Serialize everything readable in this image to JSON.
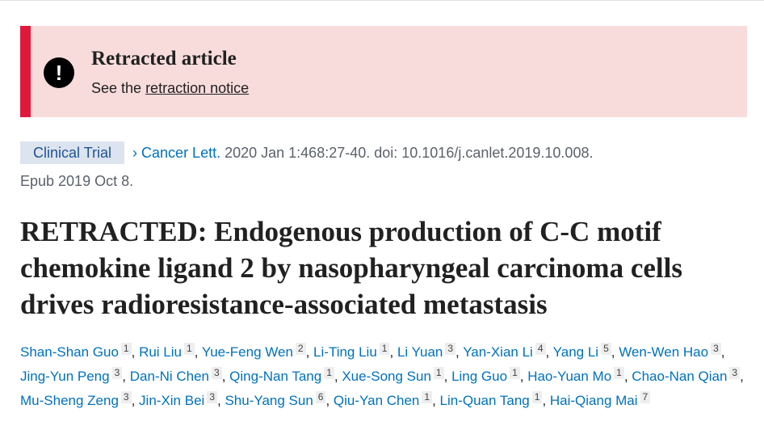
{
  "banner": {
    "title": "Retracted article",
    "prefix": "See the ",
    "link": "retraction notice",
    "icon": "exclamation-circle-icon",
    "accent": "#e0193c"
  },
  "citation": {
    "type": "Clinical Trial",
    "journal": "Cancer Lett.",
    "details": " 2020 Jan 1:468:27-40. doi: 10.1016/j.canlet.2019.10.008.",
    "epub": "Epub 2019 Oct 8."
  },
  "title": "RETRACTED: Endogenous production of C-C motif chemokine ligand 2 by nasopharyngeal carcinoma cells drives radioresistance-associated metastasis",
  "authors": [
    {
      "name": "Shan-Shan Guo",
      "aff": "1"
    },
    {
      "name": "Rui Liu",
      "aff": "1"
    },
    {
      "name": "Yue-Feng Wen",
      "aff": "2"
    },
    {
      "name": "Li-Ting Liu",
      "aff": "1"
    },
    {
      "name": "Li Yuan",
      "aff": "3"
    },
    {
      "name": "Yan-Xian Li",
      "aff": "4"
    },
    {
      "name": "Yang Li",
      "aff": "5"
    },
    {
      "name": "Wen-Wen Hao",
      "aff": "3"
    },
    {
      "name": "Jing-Yun Peng",
      "aff": "3"
    },
    {
      "name": "Dan-Ni Chen",
      "aff": "3"
    },
    {
      "name": "Qing-Nan Tang",
      "aff": "1"
    },
    {
      "name": "Xue-Song Sun",
      "aff": "1"
    },
    {
      "name": "Ling Guo",
      "aff": "1"
    },
    {
      "name": "Hao-Yuan Mo",
      "aff": "1"
    },
    {
      "name": "Chao-Nan Qian",
      "aff": "3"
    },
    {
      "name": "Mu-Sheng Zeng",
      "aff": "3"
    },
    {
      "name": "Jin-Xin Bei",
      "aff": "3"
    },
    {
      "name": "Shu-Yang Sun",
      "aff": "6"
    },
    {
      "name": "Qiu-Yan Chen",
      "aff": "1"
    },
    {
      "name": "Lin-Quan Tang",
      "aff": "1"
    },
    {
      "name": "Hai-Qiang Mai",
      "aff": "7"
    }
  ]
}
